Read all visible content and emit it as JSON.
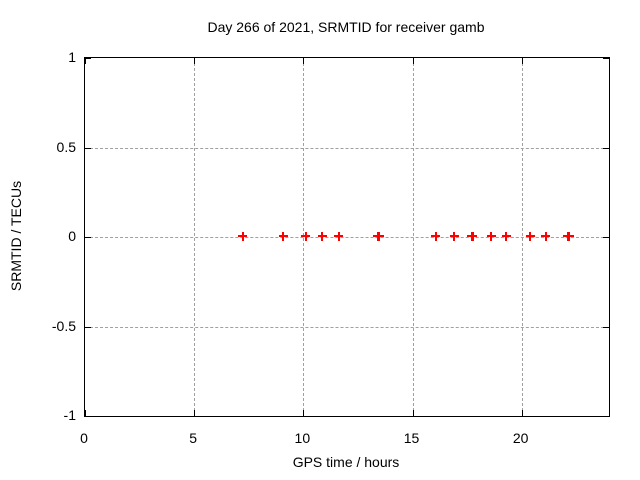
{
  "window": {
    "background": "#ffffff"
  },
  "chart_data": {
    "type": "scatter",
    "title": "Day 266 of 2021, SRMTID for receiver gamb",
    "xlabel": "GPS time / hours",
    "ylabel": "SRMTID / TECUs",
    "xlim": [
      0,
      24
    ],
    "ylim": [
      -1,
      1
    ],
    "xticks": [
      0,
      5,
      10,
      15,
      20
    ],
    "yticks": [
      -1,
      -0.5,
      0,
      0.5,
      1
    ],
    "grid": true,
    "legend": false,
    "marker": "plus",
    "series": [
      {
        "name": "SRMTID",
        "color": "#ff0000",
        "x": [
          7.28,
          9.13,
          10.15,
          10.92,
          11.67,
          13.46,
          13.52,
          16.12,
          16.95,
          17.75,
          17.81,
          18.66,
          19.33,
          20.45,
          21.15,
          22.16,
          22.22
        ],
        "y": [
          0,
          0,
          0,
          0,
          0,
          0,
          0,
          0,
          0,
          0,
          0,
          0,
          0,
          0,
          0,
          0,
          0
        ]
      }
    ]
  },
  "colors": {
    "marker": "#ff0000",
    "grid": "#a0a0a0",
    "border": "#000000",
    "text": "#000000",
    "background": "#ffffff"
  }
}
